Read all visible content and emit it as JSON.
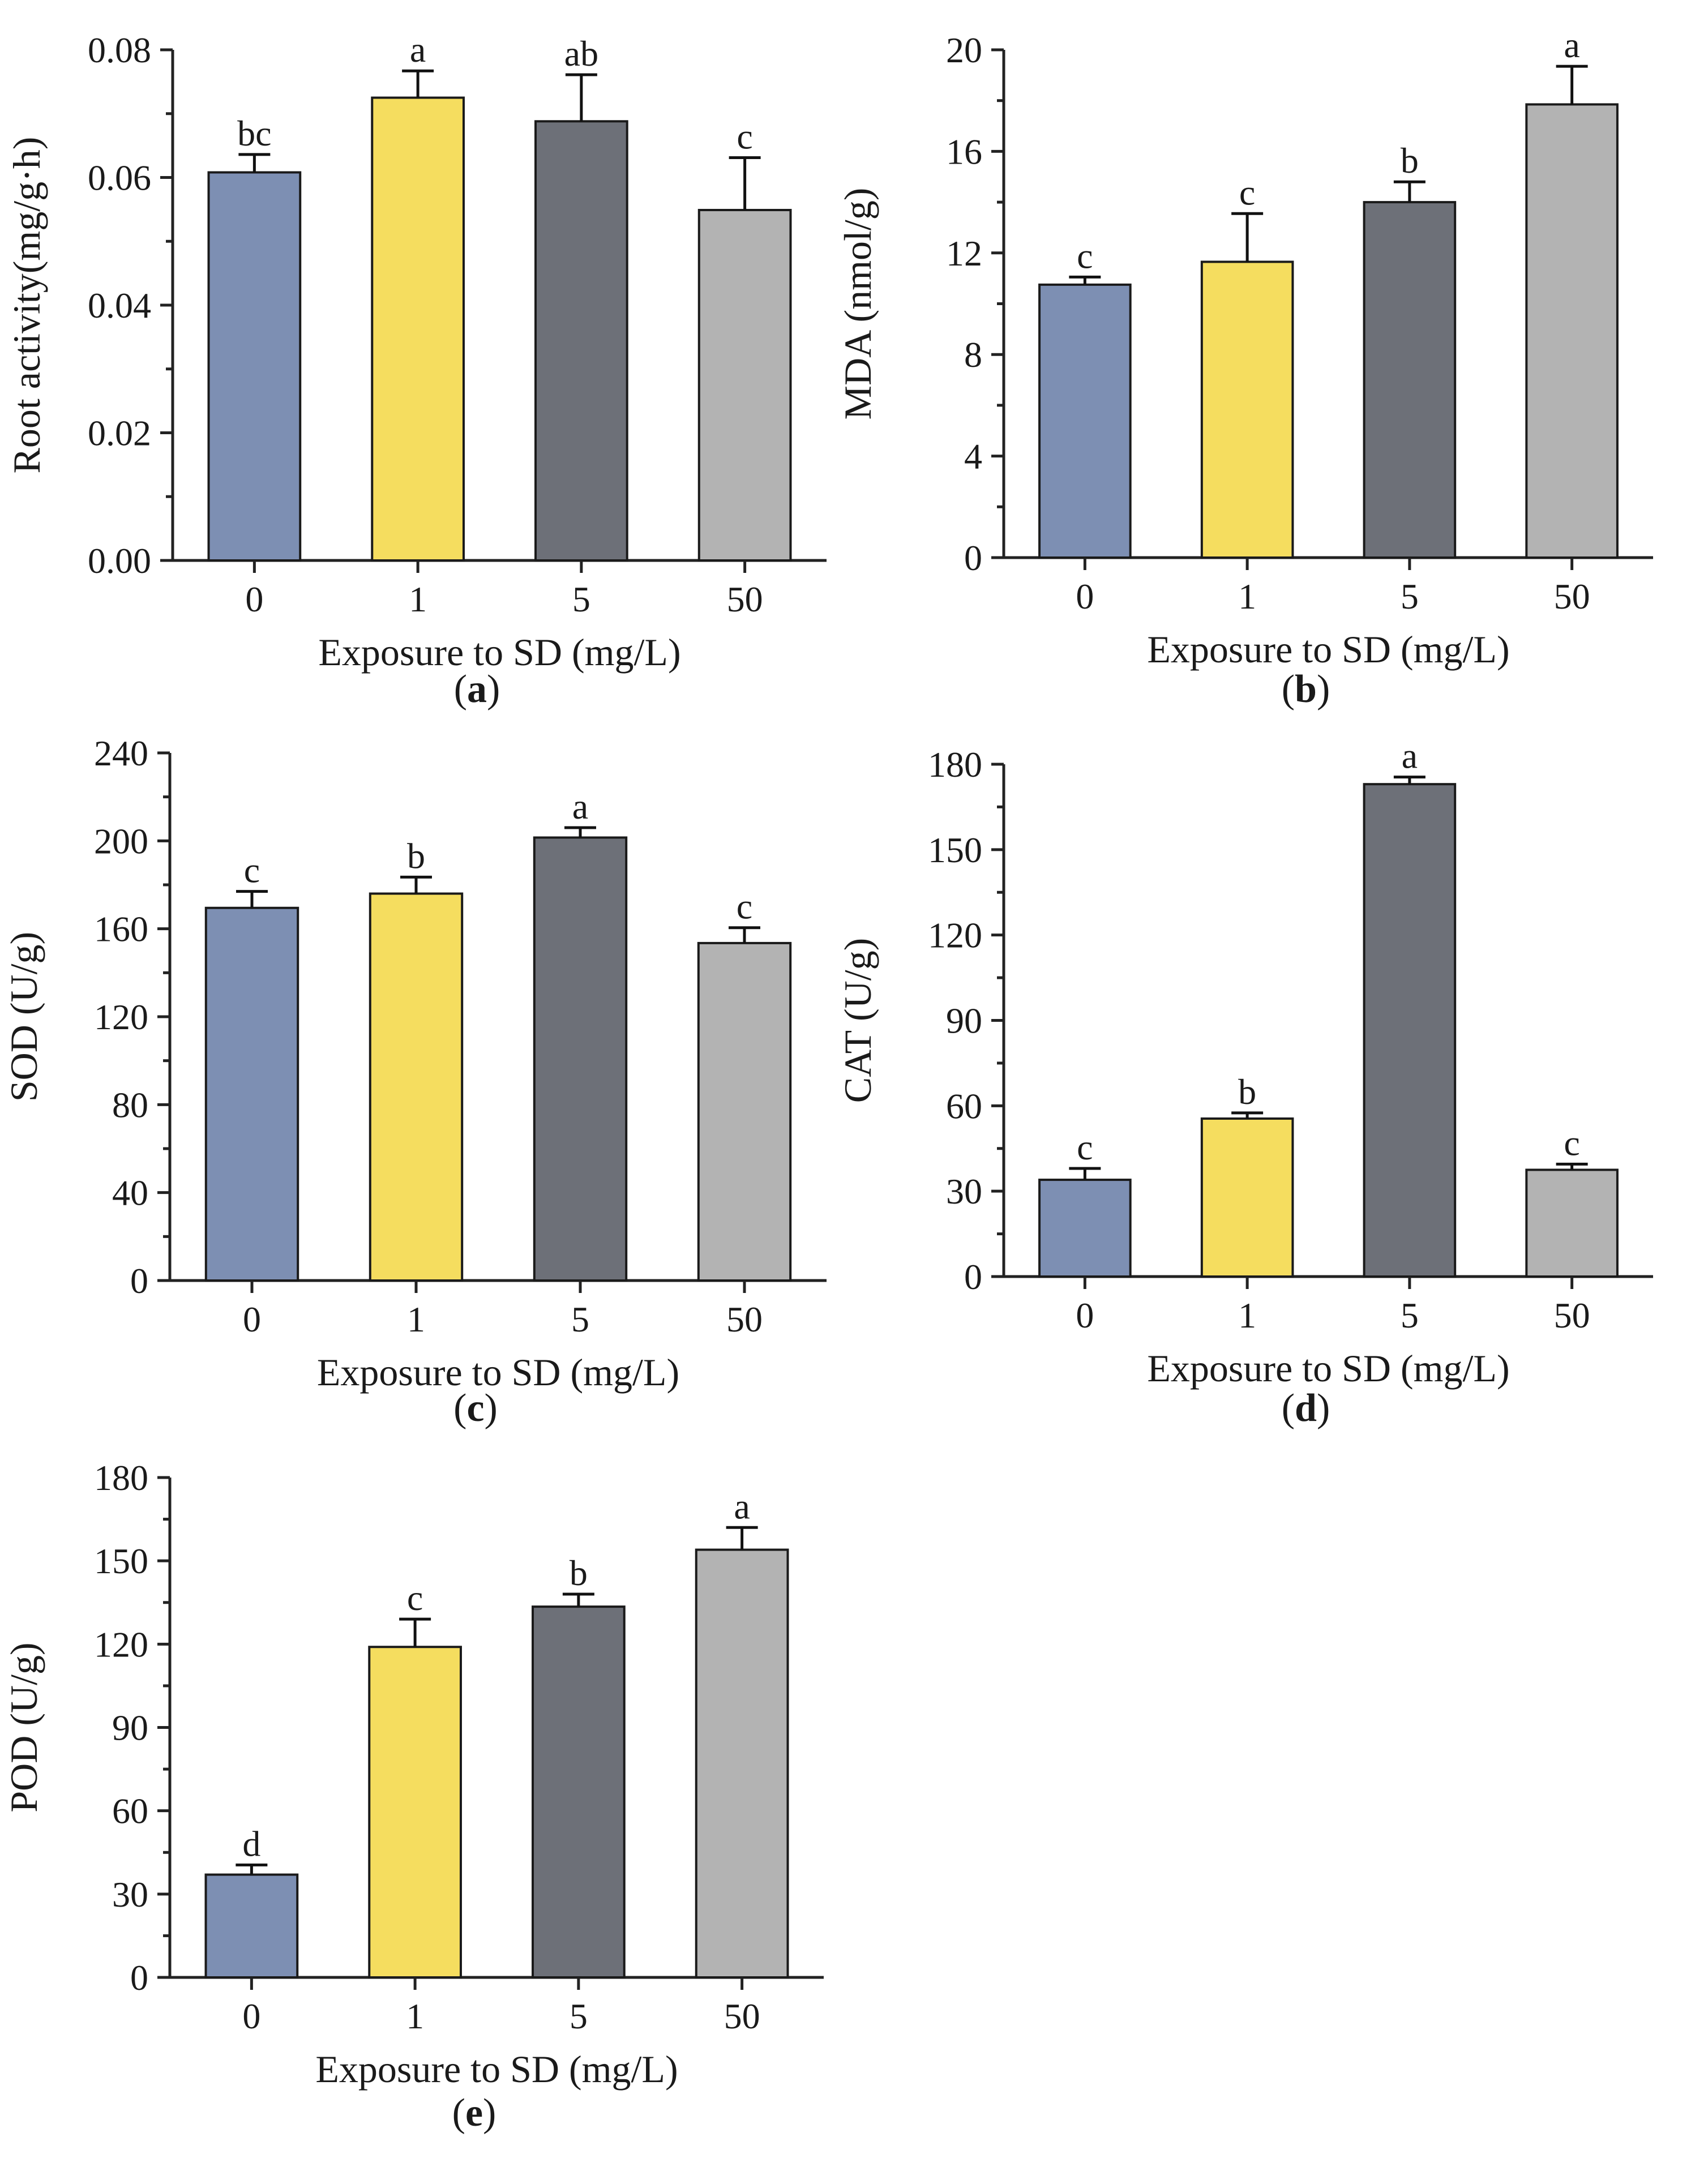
{
  "figure": {
    "xlabel": "Exposure to SD (mg/L)",
    "colors": [
      "#7D8FB3",
      "#F5DD5F",
      "#6D7078",
      "#B3B3B3"
    ],
    "categories": [
      "0",
      "1",
      "5",
      "50"
    ]
  },
  "chart_data": [
    {
      "id": "a",
      "caption_letter": "a",
      "type": "bar",
      "title": "",
      "ylabel": "Root activity(mg/g·h)",
      "xlabel": "Exposure to SD (mg/L)",
      "categories": [
        "0",
        "1",
        "5",
        "50"
      ],
      "values": [
        0.0608,
        0.0725,
        0.0688,
        0.0549
      ],
      "errors": [
        0.0028,
        0.0042,
        0.0073,
        0.0082
      ],
      "letters": [
        "bc",
        "a",
        "ab",
        "c"
      ],
      "ylim": [
        0,
        0.08
      ],
      "yticks": [
        0,
        0.02,
        0.04,
        0.06,
        0.08
      ],
      "ytick_labels": [
        "0.00",
        "0.02",
        "0.04",
        "0.06",
        "0.08"
      ]
    },
    {
      "id": "b",
      "caption_letter": "b",
      "type": "bar",
      "title": "",
      "ylabel": "MDA (nmol/g)",
      "xlabel": "Exposure to SD (mg/L)",
      "categories": [
        "0",
        "1",
        "5",
        "50"
      ],
      "values": [
        10.75,
        11.65,
        14.0,
        17.85
      ],
      "errors": [
        0.3,
        1.9,
        0.8,
        1.5
      ],
      "letters": [
        "c",
        "c",
        "b",
        "a"
      ],
      "ylim": [
        0,
        20
      ],
      "yticks": [
        0,
        4,
        8,
        12,
        16,
        20
      ],
      "ytick_labels": [
        "0",
        "4",
        "8",
        "12",
        "16",
        "20"
      ]
    },
    {
      "id": "c",
      "caption_letter": "c",
      "type": "bar",
      "title": "",
      "ylabel": "SOD (U/g)",
      "xlabel": "Exposure to SD (mg/L)",
      "categories": [
        "0",
        "1",
        "5",
        "50"
      ],
      "values": [
        169.5,
        176.0,
        201.5,
        153.5
      ],
      "errors": [
        7.5,
        7.5,
        4.5,
        7.0
      ],
      "letters": [
        "c",
        "b",
        "a",
        "c"
      ],
      "ylim": [
        0,
        240
      ],
      "yticks": [
        0,
        40,
        80,
        120,
        160,
        200,
        240
      ],
      "ytick_labels": [
        "0",
        "40",
        "80",
        "120",
        "160",
        "200",
        "240"
      ]
    },
    {
      "id": "d",
      "caption_letter": "d",
      "type": "bar",
      "title": "",
      "ylabel": "CAT (U/g)",
      "xlabel": "Exposure to SD (mg/L)",
      "categories": [
        "0",
        "1",
        "5",
        "50"
      ],
      "values": [
        34.0,
        55.5,
        173.0,
        37.5
      ],
      "errors": [
        4.0,
        2.0,
        2.5,
        2.0
      ],
      "letters": [
        "c",
        "b",
        "a",
        "c"
      ],
      "ylim": [
        0,
        180
      ],
      "yticks": [
        0,
        30,
        60,
        90,
        120,
        150,
        180
      ],
      "ytick_labels": [
        "0",
        "30",
        "60",
        "90",
        "120",
        "150",
        "180"
      ]
    },
    {
      "id": "e",
      "caption_letter": "e",
      "type": "bar",
      "title": "",
      "ylabel": "POD  (U/g)",
      "xlabel": "Exposure to SD (mg/L)",
      "categories": [
        "0",
        "1",
        "5",
        "50"
      ],
      "values": [
        37.0,
        119.0,
        133.5,
        154.0
      ],
      "errors": [
        3.5,
        10.0,
        4.5,
        8.0
      ],
      "letters": [
        "d",
        "c",
        "b",
        "a"
      ],
      "ylim": [
        0,
        180
      ],
      "yticks": [
        0,
        30,
        60,
        90,
        120,
        150,
        180
      ],
      "ytick_labels": [
        "0",
        "30",
        "60",
        "90",
        "120",
        "150",
        "180"
      ]
    }
  ]
}
